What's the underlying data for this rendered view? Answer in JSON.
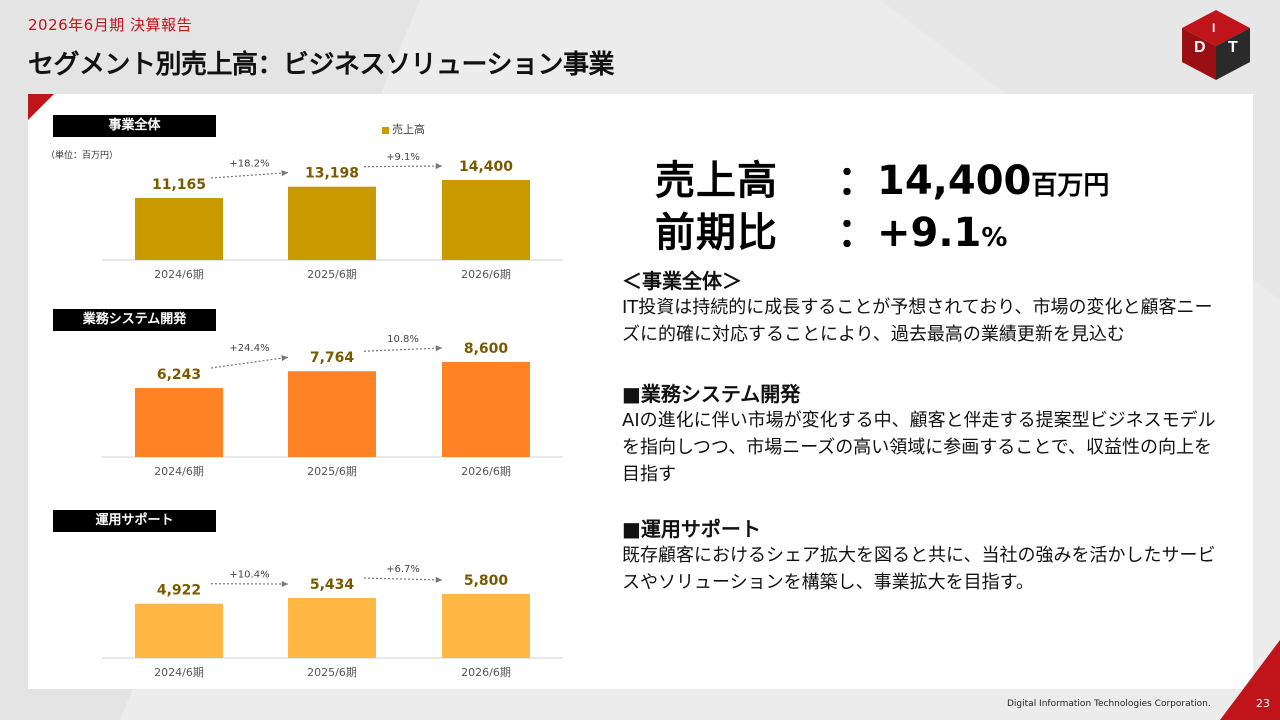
{
  "header": {
    "subtitle": "2026年6月期  決算報告",
    "title": "セグメント別売上高：ビジネスソリューション事業"
  },
  "logo_icon": "dit-cube-logo-icon",
  "unit_note": "（単位：百万円）",
  "legend_label": "売上高",
  "colors": {
    "accent_red": "#c0141b",
    "total": "#c99a00",
    "business": "#ff8325",
    "support": "#ffb844"
  },
  "summary": {
    "sales_label": "売上高",
    "sales_value": "：14,400",
    "sales_unit": "百万円",
    "yoy_label": "前期比",
    "yoy_value": "：+9.1",
    "yoy_unit": "%"
  },
  "sections": {
    "total": {
      "title": "＜事業全体＞",
      "body": "IT投資は持続的に成長することが予想されており、市場の変化と顧客ニーズに的確に対応することにより、過去最高の業績更新を見込む"
    },
    "business": {
      "title": "■業務システム開発",
      "body": "AIの進化に伴い市場が変化する中、顧客と伴走する提案型ビジネスモデルを指向しつつ、市場ニーズの高い領域に参画することで、収益性の向上を目指す"
    },
    "support": {
      "title": "■運用サポート",
      "body": "既存顧客におけるシェア拡大を図ると共に、当社の強みを活かしたサービスやソリューションを構築し、事業拡大を目指す。"
    }
  },
  "footer": {
    "corporation": "Digital Information Technologies Corporation.",
    "page": "23"
  },
  "chart_data": [
    {
      "type": "bar",
      "title": "事業全体",
      "categories": [
        "2024/6期",
        "2025/6期",
        "2026/6期"
      ],
      "series": [
        {
          "name": "売上高",
          "values": [
            11165,
            13198,
            14400
          ]
        }
      ],
      "value_labels": [
        "11,165",
        "13,198",
        "14,400"
      ],
      "growth_labels": [
        "+18.2%",
        "+9.1%"
      ],
      "color": "#c99a00",
      "ylim": [
        0,
        15000
      ]
    },
    {
      "type": "bar",
      "title": "業務システム開発",
      "categories": [
        "2024/6期",
        "2025/6期",
        "2026/6期"
      ],
      "series": [
        {
          "values": [
            6243,
            7764,
            8600
          ]
        }
      ],
      "value_labels": [
        "6,243",
        "7,764",
        "8,600"
      ],
      "growth_labels": [
        "+24.4%",
        "10.8%"
      ],
      "color": "#ff8325",
      "ylim": [
        0,
        9000
      ]
    },
    {
      "type": "bar",
      "title": "運用サポート",
      "categories": [
        "2024/6期",
        "2025/6期",
        "2026/6期"
      ],
      "series": [
        {
          "values": [
            4922,
            5434,
            5800
          ]
        }
      ],
      "value_labels": [
        "4,922",
        "5,434",
        "5,800"
      ],
      "growth_labels": [
        "+10.4%",
        "+6.7%"
      ],
      "color": "#ffb844",
      "ylim": [
        0,
        6000
      ]
    }
  ]
}
